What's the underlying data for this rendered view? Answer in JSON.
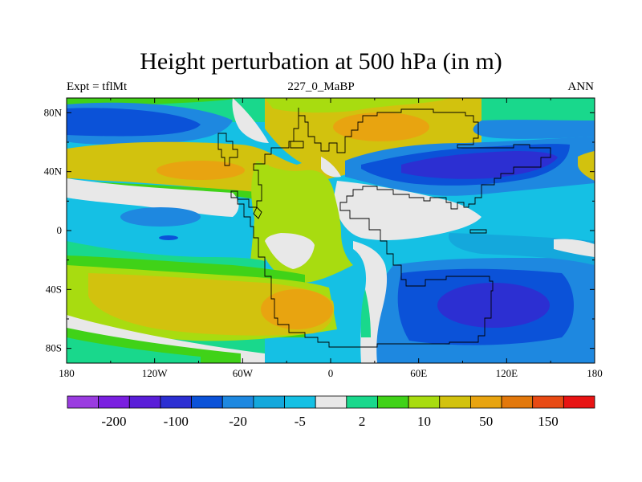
{
  "title": "Height perturbation at 500 hPa (in m)",
  "left_string": "Expt = tflMt",
  "center_string": "227_0_MaBP",
  "right_string": "ANN",
  "lon_ticks": [
    "180",
    "120W",
    "60W",
    "0",
    "60E",
    "120E",
    "180"
  ],
  "lat_ticks": [
    "80N",
    "40N",
    "0",
    "40S",
    "80S"
  ],
  "colorbar": {
    "colors": [
      "#9a3ce0",
      "#7a1fe0",
      "#5a1ed8",
      "#2c2fd2",
      "#0b52d8",
      "#1e88e0",
      "#14a8dc",
      "#15c0e4",
      "#e8e8e8",
      "#19d88c",
      "#40d218",
      "#a8dc10",
      "#d2c20e",
      "#e8a410",
      "#e2780c",
      "#e84a14",
      "#e81414"
    ],
    "labels": [
      "-200",
      "-100",
      "-20",
      "-5",
      "2",
      "10",
      "50",
      "150"
    ]
  }
}
